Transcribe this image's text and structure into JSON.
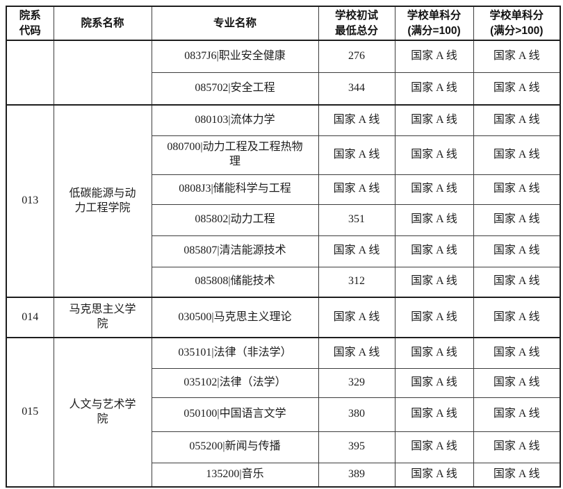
{
  "table": {
    "header": {
      "dept_code": "院系\n代码",
      "dept_name": "院系名称",
      "major": "专业名称",
      "min_total": "学校初试\n最低总分",
      "single_eq100": "学校单科分\n(满分=100)",
      "single_gt100": "学校单科分\n(满分>100)"
    },
    "groups": [
      {
        "dept_code": "",
        "dept_name": "",
        "rows": [
          {
            "major": "0837J6|职业安全健康",
            "min_total": "276",
            "single_eq100": "国家 A 线",
            "single_gt100": "国家 A 线"
          },
          {
            "major": "085702|安全工程",
            "min_total": "344",
            "single_eq100": "国家 A 线",
            "single_gt100": "国家 A 线"
          }
        ]
      },
      {
        "dept_code": "013",
        "dept_name": "低碳能源与动\n力工程学院",
        "rows": [
          {
            "major": "080103|流体力学",
            "min_total": "国家 A 线",
            "single_eq100": "国家 A 线",
            "single_gt100": "国家 A 线"
          },
          {
            "major": "080700|动力工程及工程热物\n理",
            "min_total": "国家 A 线",
            "single_eq100": "国家 A 线",
            "single_gt100": "国家 A 线"
          },
          {
            "major": "0808J3|储能科学与工程",
            "min_total": "国家 A 线",
            "single_eq100": "国家 A 线",
            "single_gt100": "国家 A 线"
          },
          {
            "major": "085802|动力工程",
            "min_total": "351",
            "single_eq100": "国家 A 线",
            "single_gt100": "国家 A 线"
          },
          {
            "major": "085807|清洁能源技术",
            "min_total": "国家 A 线",
            "single_eq100": "国家 A 线",
            "single_gt100": "国家 A 线"
          },
          {
            "major": "085808|储能技术",
            "min_total": "312",
            "single_eq100": "国家 A 线",
            "single_gt100": "国家 A 线"
          }
        ]
      },
      {
        "dept_code": "014",
        "dept_name": "马克思主义学\n院",
        "rows": [
          {
            "major": "030500|马克思主义理论",
            "min_total": "国家 A 线",
            "single_eq100": "国家 A 线",
            "single_gt100": "国家 A 线"
          }
        ]
      },
      {
        "dept_code": "015",
        "dept_name": "人文与艺术学\n院",
        "rows": [
          {
            "major": "035101|法律（非法学）",
            "min_total": "国家 A 线",
            "single_eq100": "国家 A 线",
            "single_gt100": "国家 A 线"
          },
          {
            "major": "035102|法律（法学）",
            "min_total": "329",
            "single_eq100": "国家 A 线",
            "single_gt100": "国家 A 线"
          },
          {
            "major": "050100|中国语言文学",
            "min_total": "380",
            "single_eq100": "国家 A 线",
            "single_gt100": "国家 A 线"
          },
          {
            "major": "055200|新闻与传播",
            "min_total": "395",
            "single_eq100": "国家 A 线",
            "single_gt100": "国家 A 线"
          },
          {
            "major": "135200|音乐",
            "min_total": "389",
            "single_eq100": "国家 A 线",
            "single_gt100": "国家 A 线"
          }
        ]
      }
    ]
  }
}
